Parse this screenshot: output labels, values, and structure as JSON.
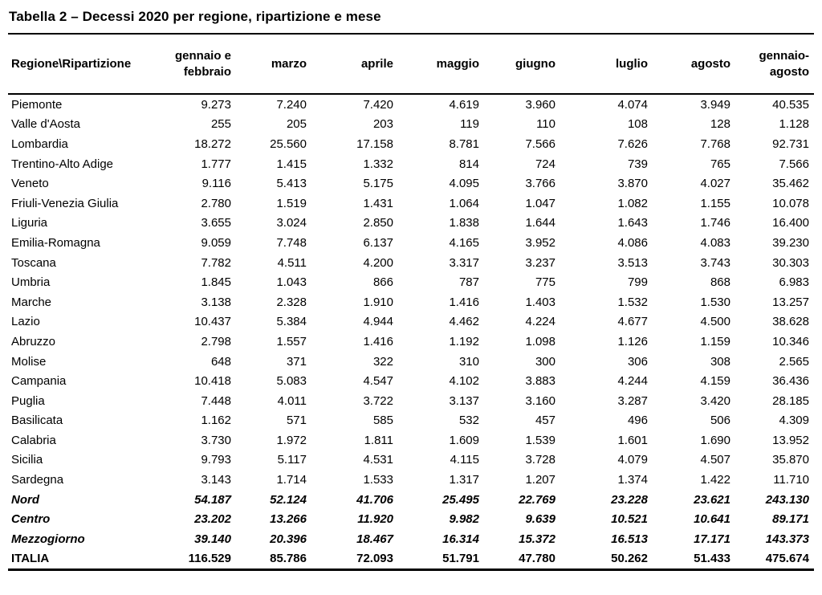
{
  "title": "Tabella 2 – Decessi 2020 per regione, ripartizione e mese",
  "table": {
    "columns": [
      "Regione\\Ripartizione",
      "gennaio e febbraio",
      "marzo",
      "aprile",
      "maggio",
      "giugno",
      "luglio",
      "agosto",
      "gennaio-agosto"
    ],
    "rows": [
      {
        "label": "Piemonte",
        "type": "region",
        "values": [
          "9.273",
          "7.240",
          "7.420",
          "4.619",
          "3.960",
          "4.074",
          "3.949",
          "40.535"
        ]
      },
      {
        "label": "Valle d'Aosta",
        "type": "region",
        "values": [
          "255",
          "205",
          "203",
          "119",
          "110",
          "108",
          "128",
          "1.128"
        ]
      },
      {
        "label": "Lombardia",
        "type": "region",
        "values": [
          "18.272",
          "25.560",
          "17.158",
          "8.781",
          "7.566",
          "7.626",
          "7.768",
          "92.731"
        ]
      },
      {
        "label": "Trentino-Alto Adige",
        "type": "region",
        "values": [
          "1.777",
          "1.415",
          "1.332",
          "814",
          "724",
          "739",
          "765",
          "7.566"
        ]
      },
      {
        "label": "Veneto",
        "type": "region",
        "values": [
          "9.116",
          "5.413",
          "5.175",
          "4.095",
          "3.766",
          "3.870",
          "4.027",
          "35.462"
        ]
      },
      {
        "label": "Friuli-Venezia Giulia",
        "type": "region",
        "values": [
          "2.780",
          "1.519",
          "1.431",
          "1.064",
          "1.047",
          "1.082",
          "1.155",
          "10.078"
        ]
      },
      {
        "label": "Liguria",
        "type": "region",
        "values": [
          "3.655",
          "3.024",
          "2.850",
          "1.838",
          "1.644",
          "1.643",
          "1.746",
          "16.400"
        ]
      },
      {
        "label": "Emilia-Romagna",
        "type": "region",
        "values": [
          "9.059",
          "7.748",
          "6.137",
          "4.165",
          "3.952",
          "4.086",
          "4.083",
          "39.230"
        ]
      },
      {
        "label": "Toscana",
        "type": "region",
        "values": [
          "7.782",
          "4.511",
          "4.200",
          "3.317",
          "3.237",
          "3.513",
          "3.743",
          "30.303"
        ]
      },
      {
        "label": "Umbria",
        "type": "region",
        "values": [
          "1.845",
          "1.043",
          "866",
          "787",
          "775",
          "799",
          "868",
          "6.983"
        ]
      },
      {
        "label": "Marche",
        "type": "region",
        "values": [
          "3.138",
          "2.328",
          "1.910",
          "1.416",
          "1.403",
          "1.532",
          "1.530",
          "13.257"
        ]
      },
      {
        "label": "Lazio",
        "type": "region",
        "values": [
          "10.437",
          "5.384",
          "4.944",
          "4.462",
          "4.224",
          "4.677",
          "4.500",
          "38.628"
        ]
      },
      {
        "label": "Abruzzo",
        "type": "region",
        "values": [
          "2.798",
          "1.557",
          "1.416",
          "1.192",
          "1.098",
          "1.126",
          "1.159",
          "10.346"
        ]
      },
      {
        "label": "Molise",
        "type": "region",
        "values": [
          "648",
          "371",
          "322",
          "310",
          "300",
          "306",
          "308",
          "2.565"
        ]
      },
      {
        "label": "Campania",
        "type": "region",
        "values": [
          "10.418",
          "5.083",
          "4.547",
          "4.102",
          "3.883",
          "4.244",
          "4.159",
          "36.436"
        ]
      },
      {
        "label": "Puglia",
        "type": "region",
        "values": [
          "7.448",
          "4.011",
          "3.722",
          "3.137",
          "3.160",
          "3.287",
          "3.420",
          "28.185"
        ]
      },
      {
        "label": "Basilicata",
        "type": "region",
        "values": [
          "1.162",
          "571",
          "585",
          "532",
          "457",
          "496",
          "506",
          "4.309"
        ]
      },
      {
        "label": "Calabria",
        "type": "region",
        "values": [
          "3.730",
          "1.972",
          "1.811",
          "1.609",
          "1.539",
          "1.601",
          "1.690",
          "13.952"
        ]
      },
      {
        "label": "Sicilia",
        "type": "region",
        "values": [
          "9.793",
          "5.117",
          "4.531",
          "4.115",
          "3.728",
          "4.079",
          "4.507",
          "35.870"
        ]
      },
      {
        "label": "Sardegna",
        "type": "region",
        "values": [
          "3.143",
          "1.714",
          "1.533",
          "1.317",
          "1.207",
          "1.374",
          "1.422",
          "11.710"
        ]
      },
      {
        "label": "Nord",
        "type": "area",
        "values": [
          "54.187",
          "52.124",
          "41.706",
          "25.495",
          "22.769",
          "23.228",
          "23.621",
          "243.130"
        ]
      },
      {
        "label": "Centro",
        "type": "area",
        "values": [
          "23.202",
          "13.266",
          "11.920",
          "9.982",
          "9.639",
          "10.521",
          "10.641",
          "89.171"
        ]
      },
      {
        "label": "Mezzogiorno",
        "type": "area",
        "values": [
          "39.140",
          "20.396",
          "18.467",
          "16.314",
          "15.372",
          "16.513",
          "17.171",
          "143.373"
        ]
      },
      {
        "label": "ITALIA",
        "type": "total",
        "values": [
          "116.529",
          "85.786",
          "72.093",
          "51.791",
          "47.780",
          "50.262",
          "51.433",
          "475.674"
        ]
      }
    ]
  }
}
